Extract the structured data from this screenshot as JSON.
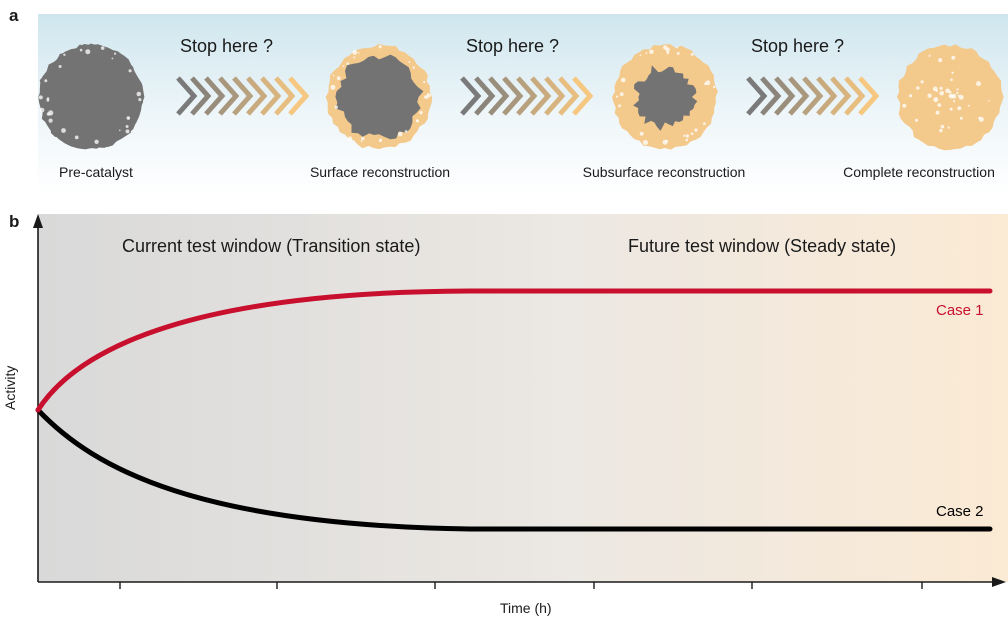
{
  "panel_a": {
    "label": "a",
    "stop_labels": [
      "Stop here ?",
      "Stop here ?",
      "Stop here ?"
    ],
    "stages": [
      {
        "name": "Pre-catalyst",
        "shell_fraction": 0.0
      },
      {
        "name": "Surface reconstruction",
        "shell_fraction": 0.25
      },
      {
        "name": "Subsurface reconstruction",
        "shell_fraction": 0.5
      },
      {
        "name": "Complete reconstruction",
        "shell_fraction": 1.0
      }
    ],
    "colors": {
      "core": "#737373",
      "shell": "#f3c98c",
      "chevron_start": "#7a7a7a",
      "chevron_end": "#f6c781"
    }
  },
  "panel_b": {
    "label": "b",
    "left_window": "Current test window (Transition state)",
    "right_window": "Future test window (Steady state)",
    "y_axis_label": "Activity",
    "x_axis_label": "Time (h)",
    "cases": [
      {
        "name": "Case 1",
        "color": "#c8102e",
        "trend": "increase"
      },
      {
        "name": "Case 2",
        "color": "#000000",
        "trend": "decrease"
      }
    ],
    "colors": {
      "bg_left": "#d9d9d9",
      "bg_right": "#fbead4"
    }
  }
}
